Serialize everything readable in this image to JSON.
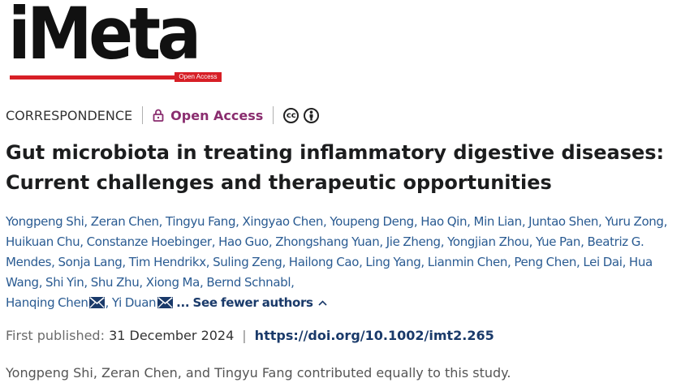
{
  "logo": {
    "text": "iMeta",
    "badge": "Open Access"
  },
  "article_type": "CORRESPONDENCE",
  "open_access": "Open Access",
  "license": {
    "cc": "cc",
    "by": "i"
  },
  "title_line1": "Gut microbiota in treating inflammatory digestive diseases:",
  "title_line2": "Current challenges and therapeutic opportunities",
  "authors": [
    "Yongpeng Shi",
    "Zeran Chen",
    "Tingyu Fang",
    "Xingyao Chen",
    "Youpeng Deng",
    "Hao Qin",
    "Min Lian",
    "Juntao Shen",
    "Yuru Zong",
    "Huikuan Chu",
    "Constanze Hoebinger",
    "Hao Guo",
    "Zhongshang Yuan",
    "Jie Zheng",
    "Yongjian Zhou",
    "Yue Pan",
    "Beatriz G. Mendes",
    "Sonja Lang",
    "Tim Hendrikx",
    "Suling Zeng",
    "Hailong Cao",
    "Ling Yang",
    "Lianmin Chen",
    "Peng Chen",
    "Lei Dai",
    "Hua Wang",
    "Shi Yin",
    "Shu Zhu",
    "Xiong Ma",
    "Bernd Schnabl",
    "Hanqing Chen",
    "Yi Duan"
  ],
  "corresponding_authors": [
    "Hanqing Chen",
    "Yi Duan"
  ],
  "see_fewer": "... See fewer authors",
  "published": {
    "label": "First published:",
    "date": "31 December 2024",
    "separator": "|",
    "doi": "https://doi.org/10.1002/imt2.265"
  },
  "contribution_note": "Yongpeng Shi, Zeran Chen, and Tingyu Fang contributed equally to this study.",
  "colors": {
    "brand_red": "#d71f26",
    "open_access": "#8a2d6f",
    "author_link": "#2a5b92",
    "doi": "#1a3a6a"
  },
  "icons": [
    "lock-icon",
    "creative-commons-icon",
    "attribution-icon",
    "mail-icon",
    "chevron-up-icon"
  ]
}
